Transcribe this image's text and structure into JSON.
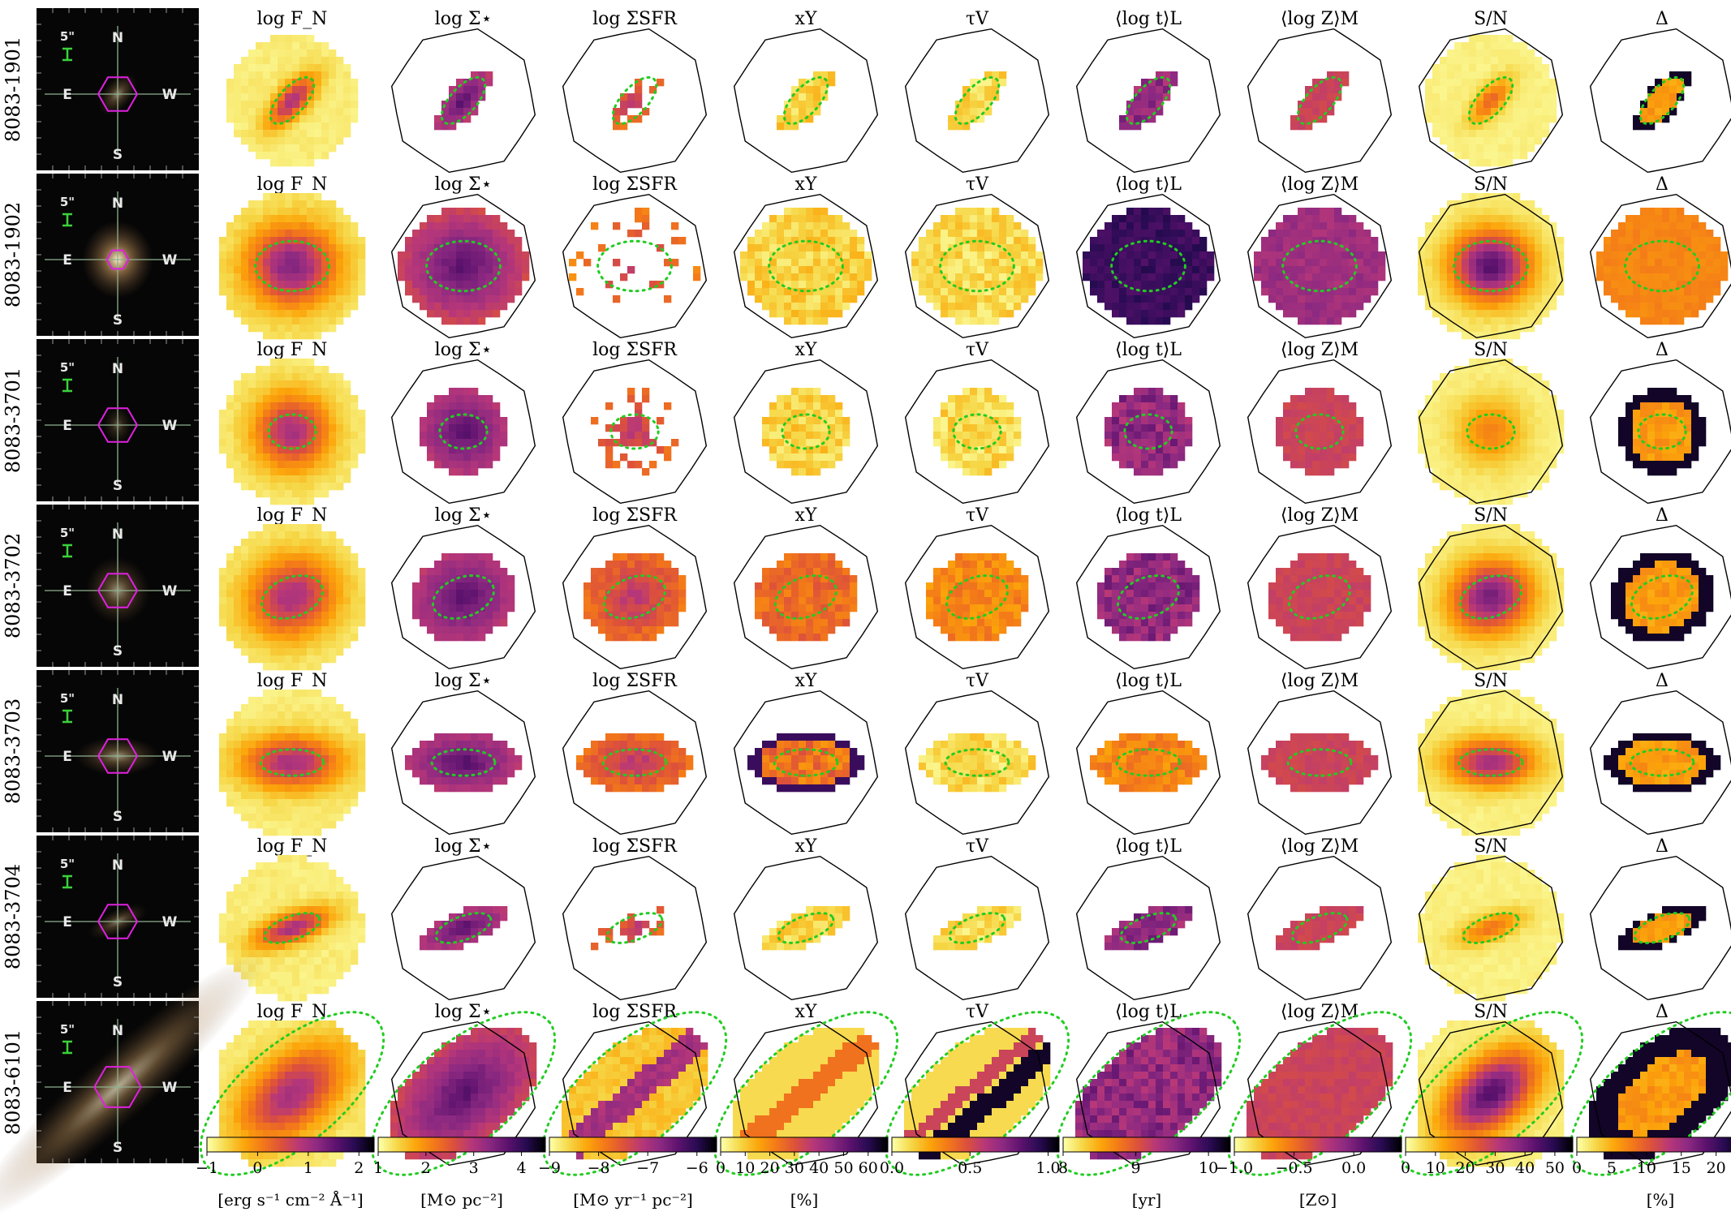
{
  "chart_data": {
    "type": "heatmap",
    "description_grid": "7 galaxies x 10 panels (SDSS image + 9 property maps)",
    "galaxies": [
      "8083-1901",
      "8083-1902",
      "8083-3701",
      "8083-3702",
      "8083-3703",
      "8083-3704",
      "8083-6101"
    ],
    "image_labels": {
      "scale": "5\"",
      "north": "N",
      "south": "S",
      "east": "E",
      "west": "W"
    },
    "panels": [
      {
        "key": "logFN",
        "title": "log F_N",
        "unit": "[erg s⁻¹ cm⁻² Å⁻¹]",
        "range": [
          -1,
          2.3
        ],
        "ticks": [
          "−1",
          "0",
          "1",
          "2"
        ]
      },
      {
        "key": "logSs",
        "title": "log Σ⋆",
        "unit": "[M⊙ pc⁻²]",
        "range": [
          1,
          4.5
        ],
        "ticks": [
          "1",
          "2",
          "3",
          "4"
        ]
      },
      {
        "key": "logSSFR",
        "title": "log ΣSFR",
        "unit": "[M⊙ yr⁻¹ pc⁻²]",
        "range": [
          -9,
          -5.6
        ],
        "ticks": [
          "−9",
          "−8",
          "−7",
          "−6"
        ]
      },
      {
        "key": "xY",
        "title": "xY",
        "unit": "[%]",
        "range": [
          0,
          68
        ],
        "ticks": [
          "0",
          "10",
          "20",
          "30",
          "40",
          "50",
          "60"
        ]
      },
      {
        "key": "tauV",
        "title": "τV",
        "unit": "",
        "range": [
          0,
          1.07
        ],
        "ticks": [
          "0.0",
          "0.5",
          "1.0"
        ]
      },
      {
        "key": "logt",
        "title": "⟨log t⟩L",
        "unit": "[yr]",
        "range": [
          8,
          10.3
        ],
        "ticks": [
          "8",
          "9",
          "10"
        ]
      },
      {
        "key": "logZ",
        "title": "⟨log Z⟩M",
        "unit": "[Z⊙]",
        "range": [
          -1.0,
          0.4
        ],
        "ticks": [
          "−1.0",
          "−0.5",
          "0.0"
        ]
      },
      {
        "key": "SN",
        "title": "S/N",
        "unit": "",
        "range": [
          0,
          56
        ],
        "ticks": [
          "0",
          "10",
          "20",
          "30",
          "40",
          "50"
        ]
      },
      {
        "key": "Delta",
        "title": "Δ",
        "unit": "[%]",
        "range": [
          0,
          24
        ],
        "ticks": [
          "0",
          "5",
          "10",
          "15",
          "20"
        ]
      }
    ],
    "colormap": {
      "name": "inferno_r",
      "stops": [
        "#fcffa4",
        "#f6d645",
        "#fca50a",
        "#f37819",
        "#dd513a",
        "#b73779",
        "#8c2981",
        "#5c126e",
        "#280b53",
        "#000004"
      ]
    },
    "colors": {
      "hexagon": "#e020e0",
      "ellipse": "#22cc22",
      "footprint": "#000000"
    }
  }
}
